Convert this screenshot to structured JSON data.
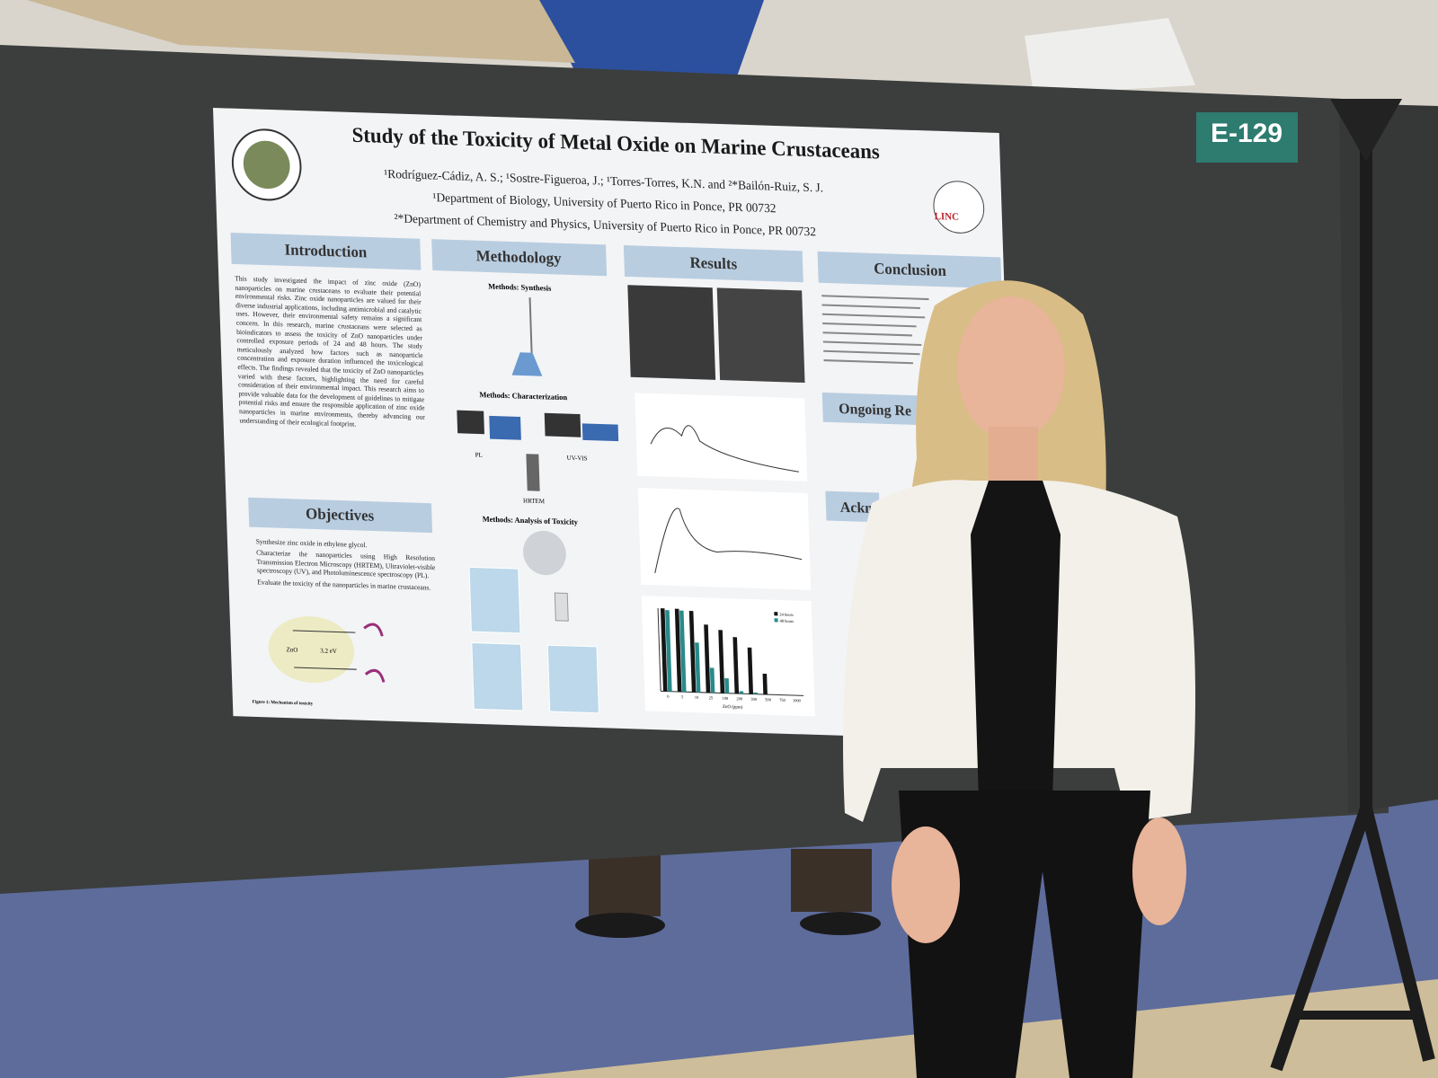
{
  "booth": {
    "number": "E-129"
  },
  "poster": {
    "title": "Study of the Toxicity of Metal Oxide on Marine Crustaceans",
    "authors": "¹Rodríguez-Cádiz, A. S.; ¹Sostre-Figueroa, J.; ¹Torres-Torres, K.N. and ²*Bailón-Ruiz, S. J.",
    "affiliations": [
      "¹Department of Biology, University of Puerto Rico in Ponce, PR 00732",
      "²*Department of Chemistry and Physics, University of Puerto Rico in Ponce, PR 00732"
    ],
    "logo_text": "LINC",
    "introduction": {
      "heading": "Introduction",
      "text": "This study investigated the impact of zinc oxide (ZnO) nanoparticles on marine crustaceans to evaluate their potential environmental risks. Zinc oxide nanoparticles are valued for their diverse industrial applications, including antimicrobial and catalytic uses. However, their environmental safety remains a significant concern. In this research, marine crustaceans were selected as bioindicators to assess the toxicity of ZnO nanoparticles under controlled exposure periods of 24 and 48 hours. The study meticulously analyzed how factors such as nanoparticle concentration and exposure duration influenced the toxicological effects. The findings revealed that the toxicity of ZnO nanoparticles varied with these factors, highlighting the need for careful consideration of their environmental impact. This research aims to provide valuable data for the development of guidelines to mitigate potential risks and ensure the responsible application of zinc oxide nanoparticles in marine environments, thereby advancing our understanding of their ecological footprint."
    },
    "objectives": {
      "heading": "Objectives",
      "items": [
        "Synthesize zinc oxide in ethylene glycol.",
        "Characterize the nanoparticles using High Resolution Transmission Electron Microscopy (HRTEM), Ultraviolet-visible spectroscopy (UV), and Photoluminescence spectroscopy (PL).",
        "Evaluate the toxicity of the nanoparticles in marine crustaceans."
      ]
    },
    "mechanism": {
      "labels": [
        "ZnO",
        "3.2 eV"
      ],
      "caption": "Figure 1: Mechanism of toxicity"
    },
    "methodology": {
      "heading": "Methodology",
      "subheadings": [
        "Methods: Synthesis",
        "Methods: Characterization",
        "Methods: Analysis of Toxicity"
      ],
      "labels": [
        "PL",
        "UV-VIS",
        "HRTEM"
      ]
    },
    "results": {
      "heading": "Results",
      "viability_chart": {
        "x_label": "ZnO (ppm)",
        "categories": [
          "0",
          "5",
          "10",
          "25",
          "100",
          "200",
          "300",
          "500",
          "750",
          "1000"
        ],
        "ylim": [
          0,
          100
        ],
        "series": [
          {
            "name": "24 hours",
            "color": "#151515",
            "values": [
              100,
              100,
              98,
              82,
              76,
              68,
              56,
              25,
              0,
              0
            ]
          },
          {
            "name": "48 hours",
            "color": "#2a8a8a",
            "values": [
              98,
              98,
              60,
              30,
              18,
              3,
              2,
              0,
              0,
              0
            ]
          }
        ]
      }
    },
    "conclusion": {
      "heading": "Conclusion"
    },
    "ongoing": {
      "heading": "Ongoing Re"
    },
    "acknowledgements": {
      "heading": "Ackn"
    }
  }
}
